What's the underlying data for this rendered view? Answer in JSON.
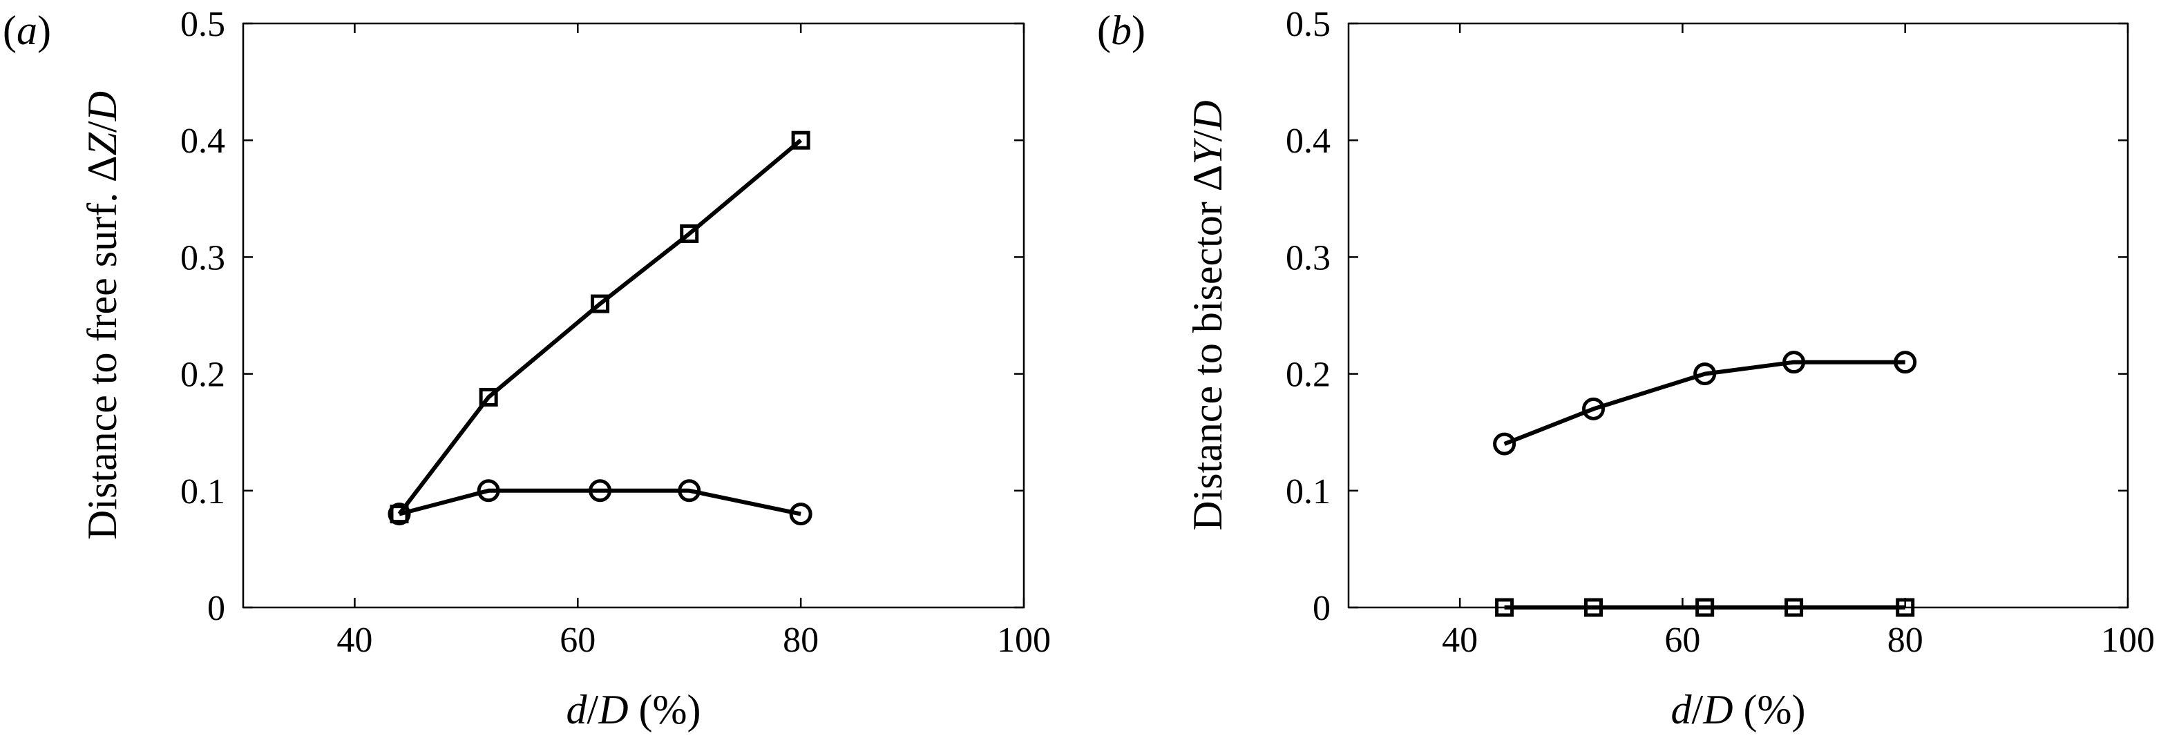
{
  "chart_data": [
    {
      "type": "line",
      "panel_label": "(a)",
      "xlabel": "d/D (%)",
      "ylabel": "Distance to free surf. ΔZ/D",
      "xlim": [
        30,
        100
      ],
      "ylim": [
        0,
        0.5
      ],
      "xticks": [
        40,
        60,
        80,
        100
      ],
      "yticks": [
        0,
        0.1,
        0.2,
        0.3,
        0.4,
        0.5
      ],
      "xtick_labels": [
        "40",
        "60",
        "80",
        "100"
      ],
      "ytick_labels": [
        "0",
        "0.1",
        "0.2",
        "0.3",
        "0.4",
        "0.5"
      ],
      "grid": false,
      "series": [
        {
          "marker": "square",
          "x": [
            44,
            52,
            62,
            70,
            80
          ],
          "y": [
            0.08,
            0.18,
            0.26,
            0.32,
            0.4
          ]
        },
        {
          "marker": "circle",
          "x": [
            44,
            52,
            62,
            70,
            80
          ],
          "y": [
            0.08,
            0.1,
            0.1,
            0.1,
            0.08
          ]
        }
      ]
    },
    {
      "type": "line",
      "panel_label": "(b)",
      "xlabel": "d/D (%)",
      "ylabel": "Distance to bisector ΔY/D",
      "xlim": [
        30,
        100
      ],
      "ylim": [
        0,
        0.5
      ],
      "xticks": [
        40,
        60,
        80,
        100
      ],
      "yticks": [
        0,
        0.1,
        0.2,
        0.3,
        0.4,
        0.5
      ],
      "xtick_labels": [
        "40",
        "60",
        "80",
        "100"
      ],
      "ytick_labels": [
        "0",
        "0.1",
        "0.2",
        "0.3",
        "0.4",
        "0.5"
      ],
      "grid": false,
      "series": [
        {
          "marker": "circle",
          "x": [
            44,
            52,
            62,
            70,
            80
          ],
          "y": [
            0.14,
            0.17,
            0.2,
            0.21,
            0.21
          ]
        },
        {
          "marker": "square",
          "x": [
            44,
            52,
            62,
            70,
            80
          ],
          "y": [
            0,
            0,
            0,
            0,
            0
          ]
        }
      ]
    }
  ]
}
